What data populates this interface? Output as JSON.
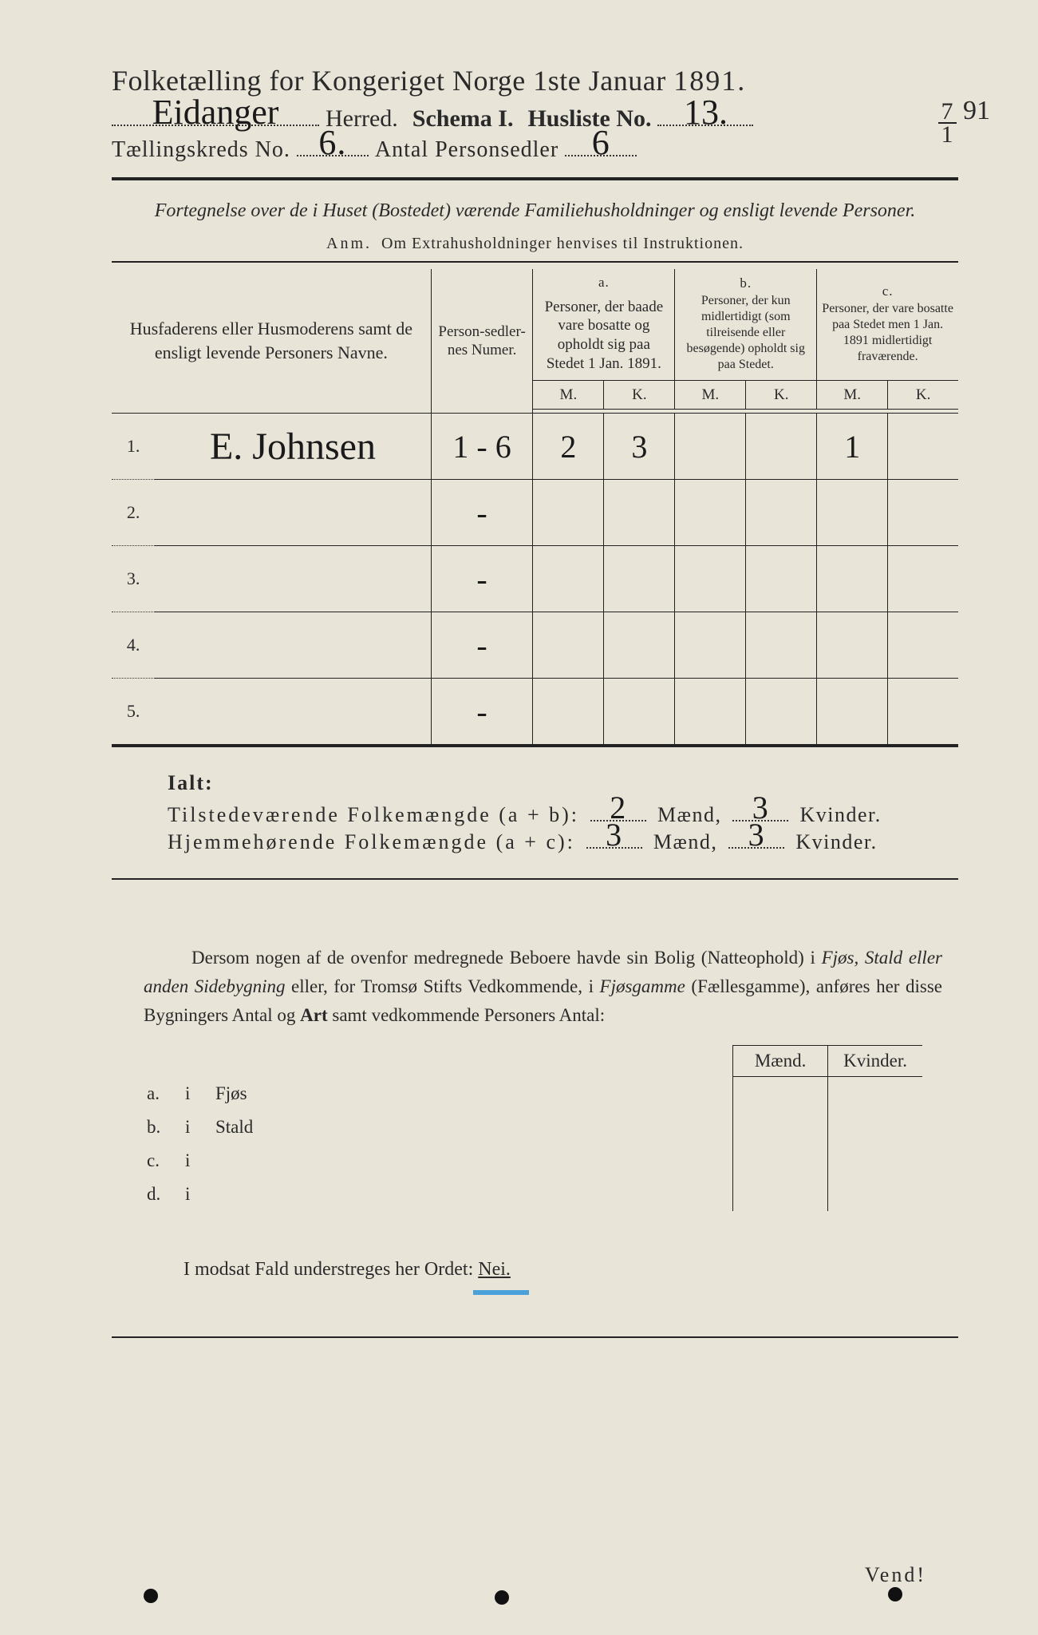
{
  "colors": {
    "paper": "#e8e4d8",
    "ink": "#2a2a2a",
    "blue_pencil": "#4aa0d8"
  },
  "header": {
    "title_prefix": "Folketælling for Kongeriget Norge 1ste Januar",
    "year": "1891.",
    "herred_label": "Herred.",
    "schema_label": "Schema I.",
    "husliste_label": "Husliste No.",
    "herred_value": "Eidanger",
    "husliste_value": "13.",
    "kreds_label": "Tællingskreds No.",
    "kreds_value": "6.",
    "personsedler_label": "Antal Personsedler",
    "personsedler_value": "6",
    "corner_date_top": "7",
    "corner_date_bottom": "1",
    "corner_date_year": "91"
  },
  "fortegnelse": {
    "line": "Fortegnelse over de i Huset (Bostedet) værende Familiehusholdninger og ensligt levende Personer.",
    "anm_label": "Anm.",
    "anm_text": "Om Extrahusholdninger henvises til Instruktionen."
  },
  "table": {
    "col_names": "Husfaderens eller Husmoderens samt de ensligt levende Personers Navne.",
    "col_numer": "Person-sedler-nes Numer.",
    "abc": {
      "a": "a.",
      "a_text": "Personer, der baade vare bosatte og opholdt sig paa Stedet 1 Jan. 1891.",
      "b": "b.",
      "b_text": "Personer, der kun midlertidigt (som tilreisende eller besøgende) opholdt sig paa Stedet.",
      "c": "c.",
      "c_text": "Personer, der vare bosatte paa Stedet men 1 Jan. 1891 midlertidigt fraværende."
    },
    "M": "M.",
    "K": "K.",
    "rows": [
      {
        "n": "1.",
        "name": "E. Johnsen",
        "numer": "1 - 6",
        "aM": "2",
        "aK": "3",
        "bM": "",
        "bK": "",
        "cM": "1",
        "cK": ""
      },
      {
        "n": "2.",
        "name": "",
        "numer": "-",
        "aM": "",
        "aK": "",
        "bM": "",
        "bK": "",
        "cM": "",
        "cK": ""
      },
      {
        "n": "3.",
        "name": "",
        "numer": "-",
        "aM": "",
        "aK": "",
        "bM": "",
        "bK": "",
        "cM": "",
        "cK": ""
      },
      {
        "n": "4.",
        "name": "",
        "numer": "-",
        "aM": "",
        "aK": "",
        "bM": "",
        "bK": "",
        "cM": "",
        "cK": ""
      },
      {
        "n": "5.",
        "name": "",
        "numer": "-",
        "aM": "",
        "aK": "",
        "bM": "",
        "bK": "",
        "cM": "",
        "cK": ""
      }
    ]
  },
  "ialt": {
    "head": "Ialt:",
    "tilstede_label": "Tilstedeværende Folkemængde (a + b):",
    "hjemme_label": "Hjemmehørende Folkemængde (a + c):",
    "maend": "Mænd,",
    "kvinder": "Kvinder.",
    "tilstede_m": "2",
    "tilstede_k": "3",
    "hjemme_m": "3",
    "hjemme_k": "3"
  },
  "dersom": {
    "text1": "Dersom nogen af de ovenfor medregnede Beboere havde sin Bolig (Natteophold) i ",
    "em1": "Fjøs, Stald eller anden Sidebygning",
    "text2": " eller, for Tromsø Stifts Vedkommende, i ",
    "em2": "Fjøsgamme",
    "text3": " (Fællesgamme), anføres her disse Bygningers Antal og ",
    "bold1": "Art",
    "text4": " samt vedkommende Personers Antal:"
  },
  "side": {
    "maend": "Mænd.",
    "kvinder": "Kvinder.",
    "rows": [
      {
        "lbl": "a.",
        "i": "i",
        "type": "Fjøs"
      },
      {
        "lbl": "b.",
        "i": "i",
        "type": "Stald"
      },
      {
        "lbl": "c.",
        "i": "i",
        "type": ""
      },
      {
        "lbl": "d.",
        "i": "i",
        "type": ""
      }
    ]
  },
  "footer": {
    "modsat": "I modsat Fald understreges her Ordet:",
    "nei": "Nei.",
    "vend": "Vend!"
  }
}
